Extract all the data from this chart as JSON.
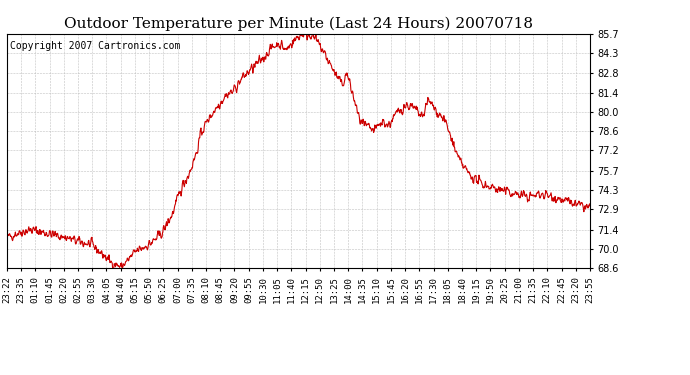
{
  "title": "Outdoor Temperature per Minute (Last 24 Hours) 20070718",
  "copyright": "Copyright 2007 Cartronics.com",
  "line_color": "#cc0000",
  "background_color": "#ffffff",
  "plot_bg_color": "#ffffff",
  "grid_color": "#bbbbbb",
  "ylim": [
    68.6,
    85.7
  ],
  "yticks": [
    68.6,
    70.0,
    71.4,
    72.9,
    74.3,
    75.7,
    77.2,
    78.6,
    80.0,
    81.4,
    82.8,
    84.3,
    85.7
  ],
  "xtick_labels": [
    "23:22",
    "23:35",
    "01:10",
    "01:45",
    "02:20",
    "02:55",
    "03:30",
    "04:05",
    "04:40",
    "05:15",
    "05:50",
    "06:25",
    "07:00",
    "07:35",
    "08:10",
    "08:45",
    "09:20",
    "09:55",
    "10:30",
    "11:05",
    "11:40",
    "12:15",
    "12:50",
    "13:25",
    "14:00",
    "14:35",
    "15:10",
    "15:45",
    "16:20",
    "16:55",
    "17:30",
    "18:05",
    "18:40",
    "19:15",
    "19:50",
    "20:25",
    "21:00",
    "21:35",
    "22:10",
    "22:45",
    "23:20",
    "23:55"
  ],
  "title_fontsize": 11,
  "copyright_fontsize": 7,
  "tick_fontsize": 6.5,
  "line_width": 0.8
}
